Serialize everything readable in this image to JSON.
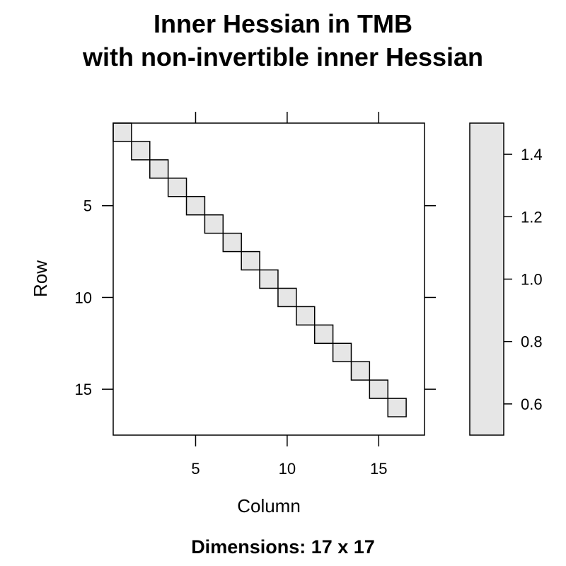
{
  "chart_data": {
    "type": "heatmap",
    "title_lines": [
      "Inner Hessian in TMB",
      "with non-invertible inner Hessian"
    ],
    "xlabel": "Column",
    "ylabel": "Row",
    "sub": "Dimensions: 17 x 17",
    "dims": [
      17,
      17
    ],
    "x_ticks": [
      5,
      10,
      15
    ],
    "y_ticks": [
      5,
      10,
      15
    ],
    "xlim": [
      0.5,
      17.5
    ],
    "ylim": [
      17.5,
      0.5
    ],
    "cells": [
      {
        "row": 1,
        "col": 1,
        "value": 1
      },
      {
        "row": 2,
        "col": 2,
        "value": 1
      },
      {
        "row": 3,
        "col": 3,
        "value": 1
      },
      {
        "row": 4,
        "col": 4,
        "value": 1
      },
      {
        "row": 5,
        "col": 5,
        "value": 1
      },
      {
        "row": 6,
        "col": 6,
        "value": 1
      },
      {
        "row": 7,
        "col": 7,
        "value": 1
      },
      {
        "row": 8,
        "col": 8,
        "value": 1
      },
      {
        "row": 9,
        "col": 9,
        "value": 1
      },
      {
        "row": 10,
        "col": 10,
        "value": 1
      },
      {
        "row": 11,
        "col": 11,
        "value": 1
      },
      {
        "row": 12,
        "col": 12,
        "value": 1
      },
      {
        "row": 13,
        "col": 13,
        "value": 1
      },
      {
        "row": 14,
        "col": 14,
        "value": 1
      },
      {
        "row": 15,
        "col": 15,
        "value": 1
      },
      {
        "row": 16,
        "col": 16,
        "value": 1
      }
    ],
    "colorkey": {
      "range": [
        0.5,
        1.5
      ],
      "ticks": [
        "0.6",
        "0.8",
        "1.0",
        "1.2",
        "1.4"
      ],
      "color": "#e6e6e6"
    },
    "cell_color": "#e6e6e6",
    "grid": false,
    "legend": "right"
  }
}
